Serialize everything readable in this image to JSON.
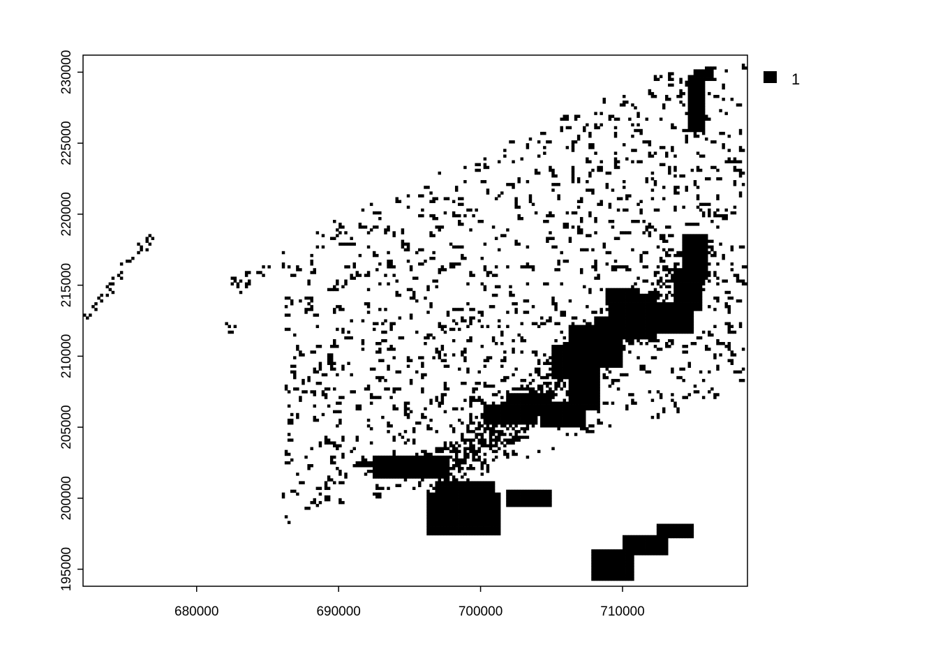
{
  "chart_data": {
    "type": "heatmap",
    "title": "",
    "xlabel": "",
    "ylabel": "",
    "xlim": [
      672000,
      718800
    ],
    "ylim": [
      193800,
      231200
    ],
    "x_ticks": [
      {
        "value": 680000,
        "label": "680000"
      },
      {
        "value": 690000,
        "label": "690000"
      },
      {
        "value": 700000,
        "label": "700000"
      },
      {
        "value": 710000,
        "label": "710000"
      }
    ],
    "y_ticks": [
      {
        "value": 195000,
        "label": "195000"
      },
      {
        "value": 200000,
        "label": "200000"
      },
      {
        "value": 205000,
        "label": "205000"
      },
      {
        "value": 210000,
        "label": "210000"
      },
      {
        "value": 215000,
        "label": "215000"
      },
      {
        "value": 220000,
        "label": "220000"
      },
      {
        "value": 225000,
        "label": "225000"
      },
      {
        "value": 230000,
        "label": "230000"
      }
    ],
    "cell_size": 200,
    "fill_color": "#000000",
    "legend": {
      "position": "top-right",
      "entries": [
        {
          "value": 1,
          "label": "1",
          "color": "#000000"
        }
      ]
    },
    "grid": false,
    "solid_patches": [
      {
        "x": [
          696300,
          701500
        ],
        "y": [
          197400,
          200300
        ]
      },
      {
        "x": [
          696900,
          701000
        ],
        "y": [
          199500,
          201300
        ]
      },
      {
        "x": [
          692500,
          697800
        ],
        "y": [
          201500,
          203000
        ]
      },
      {
        "x": [
          691300,
          693000
        ],
        "y": [
          202300,
          202700
        ]
      },
      {
        "x": [
          701800,
          704900
        ],
        "y": [
          199400,
          200500
        ]
      },
      {
        "x": [
          707800,
          710800
        ],
        "y": [
          194200,
          196300
        ]
      },
      {
        "x": [
          710000,
          713100
        ],
        "y": [
          196000,
          197400
        ]
      },
      {
        "x": [
          712500,
          715000
        ],
        "y": [
          197300,
          198300
        ]
      },
      {
        "x": [
          700300,
          704000
        ],
        "y": [
          205300,
          206600
        ]
      },
      {
        "x": [
          701800,
          704800
        ],
        "y": [
          206200,
          207400
        ]
      },
      {
        "x": [
          704200,
          707300
        ],
        "y": [
          205100,
          206900
        ]
      },
      {
        "x": [
          706300,
          708400
        ],
        "y": [
          206300,
          212200
        ]
      },
      {
        "x": [
          705000,
          707000
        ],
        "y": [
          208500,
          210800
        ]
      },
      {
        "x": [
          708100,
          710000
        ],
        "y": [
          209300,
          212800
        ]
      },
      {
        "x": [
          709000,
          712300
        ],
        "y": [
          211200,
          214400
        ]
      },
      {
        "x": [
          708800,
          711200
        ],
        "y": [
          213700,
          214800
        ]
      },
      {
        "x": [
          712000,
          714900
        ],
        "y": [
          211600,
          213700
        ]
      },
      {
        "x": [
          713600,
          715500
        ],
        "y": [
          213300,
          216300
        ]
      },
      {
        "x": [
          714200,
          716000
        ],
        "y": [
          215500,
          218700
        ]
      },
      {
        "x": [
          714600,
          715800
        ],
        "y": [
          225800,
          229700
        ]
      },
      {
        "x": [
          715000,
          716400
        ],
        "y": [
          229500,
          230300
        ]
      }
    ],
    "diagonal_strip": {
      "from": [
        672200,
        212700
      ],
      "to": [
        676900,
        218500
      ],
      "density": 0.6
    }
  }
}
